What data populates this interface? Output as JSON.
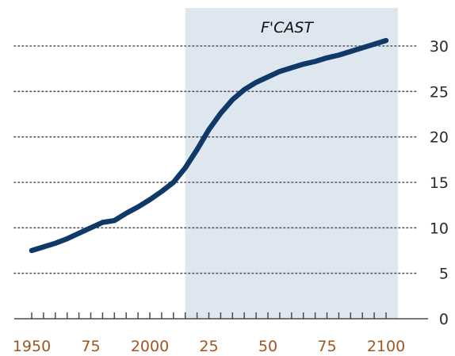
{
  "chart_data": {
    "type": "line",
    "title": "",
    "xlabel": "",
    "ylabel": "",
    "xlim": [
      1945,
      2105
    ],
    "ylim": [
      0,
      32
    ],
    "x_ticks": [
      1950,
      1975,
      2000,
      2025,
      2050,
      2075,
      2100
    ],
    "x_tick_labels": [
      "1950",
      "75",
      "2000",
      "25",
      "50",
      "75",
      "2100"
    ],
    "y_ticks": [
      0,
      5,
      10,
      15,
      20,
      25,
      30
    ],
    "y_tick_labels": [
      "0",
      "5",
      "10",
      "15",
      "20",
      "25",
      "30"
    ],
    "grid": true,
    "y_axis_side": "right",
    "forecast": {
      "label": "F'CAST",
      "start": 2015,
      "end": 2105
    },
    "series": [
      {
        "x": [
          1950,
          1955,
          1960,
          1965,
          1970,
          1975,
          1980,
          1985,
          1990,
          1995,
          2000,
          2005,
          2010,
          2015,
          2020,
          2025,
          2030,
          2035,
          2040,
          2045,
          2050,
          2055,
          2060,
          2065,
          2070,
          2075,
          2080,
          2085,
          2090,
          2095,
          2100
        ],
        "values": [
          7.5,
          7.9,
          8.3,
          8.8,
          9.4,
          10.0,
          10.6,
          10.8,
          11.6,
          12.3,
          13.1,
          14.0,
          15.0,
          16.6,
          18.6,
          20.8,
          22.6,
          24.1,
          25.2,
          26.0,
          26.6,
          27.2,
          27.6,
          28.0,
          28.3,
          28.7,
          29.0,
          29.4,
          29.8,
          30.2,
          30.6
        ]
      }
    ],
    "colors": {
      "line": "#0f3a68",
      "forecast_band": "#dee6ef",
      "gridline": "#555555",
      "axis": "#4a4a4a",
      "x_tick_labels": "#a0561e",
      "y_tick_labels": "#2a2a2a"
    }
  }
}
